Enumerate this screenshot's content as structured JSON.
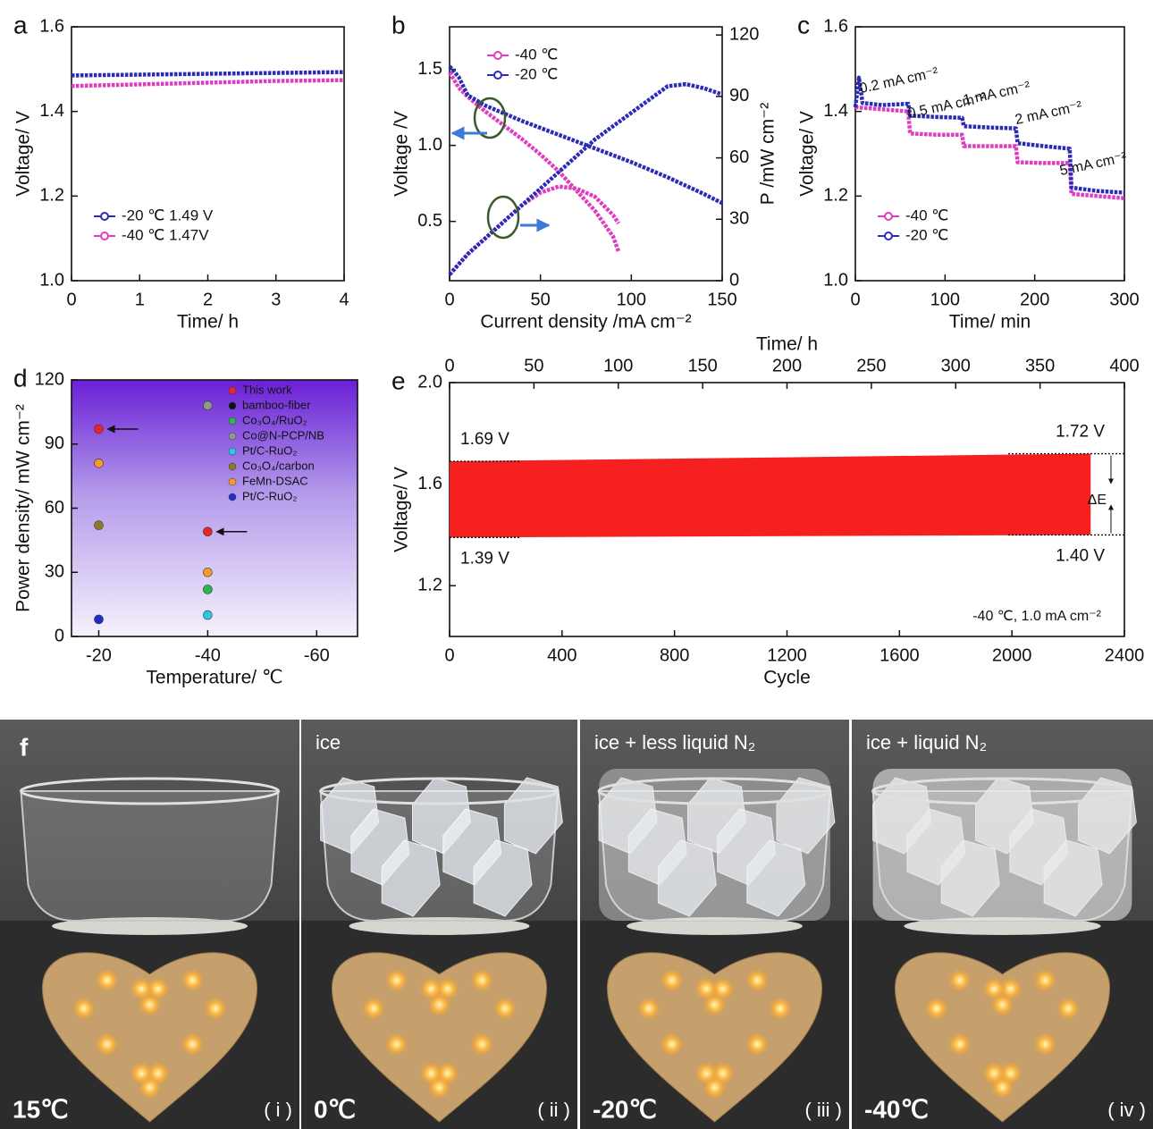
{
  "chart_data": [
    {
      "type": "line",
      "label": "a",
      "xlabel": "Time/ h",
      "ylabel": "Voltage/ V",
      "xlim": [
        0,
        4
      ],
      "ylim": [
        1.0,
        1.6
      ],
      "xticks": [
        0,
        1,
        2,
        3,
        4
      ],
      "yticks": [
        {
          "value": 1.0,
          "label": "1.0"
        },
        1.2,
        1.4,
        1.6
      ],
      "legend": "lower left",
      "series": [
        {
          "name": "-20 ℃ 1.49 V",
          "color": "#2b2bb5",
          "x": [
            0,
            0.5,
            1,
            1.5,
            2,
            2.5,
            3,
            3.5,
            4
          ],
          "values": [
            1.485,
            1.486,
            1.487,
            1.488,
            1.489,
            1.49,
            1.491,
            1.492,
            1.493
          ]
        },
        {
          "name": "-40 ℃ 1.47V",
          "color": "#e03cc0",
          "x": [
            0,
            0.5,
            1,
            1.5,
            2,
            2.5,
            3,
            3.5,
            4
          ],
          "values": [
            1.46,
            1.462,
            1.464,
            1.466,
            1.468,
            1.47,
            1.472,
            1.473,
            1.474
          ]
        }
      ]
    },
    {
      "type": "line",
      "label": "b",
      "xlabel": "Current density /mA cm⁻²",
      "ylabel": "Voltage /V",
      "y2label": "P /mW cm⁻²",
      "xlim": [
        0,
        150
      ],
      "ylim": [
        0.11,
        1.78
      ],
      "y2lim": [
        0,
        124
      ],
      "xticks": [
        0,
        50,
        100,
        150
      ],
      "yticks": [
        0.5,
        {
          "value": 1.0,
          "label": "1.0"
        },
        1.5
      ],
      "y2ticks": [
        0,
        30,
        60,
        90,
        120
      ],
      "legend": "upper left",
      "series": [
        {
          "name": "-40 ℃",
          "color": "#e03cc0",
          "x": [
            0,
            5,
            10,
            20,
            30,
            40,
            50,
            60,
            70,
            80,
            90,
            93
          ],
          "values": [
            1.48,
            1.38,
            1.32,
            1.22,
            1.13,
            1.04,
            0.94,
            0.83,
            0.7,
            0.57,
            0.4,
            0.3
          ]
        },
        {
          "name": "-20 ℃",
          "color": "#2b2bb5",
          "x": [
            0,
            5,
            10,
            20,
            40,
            60,
            80,
            100,
            120,
            140,
            150
          ],
          "values": [
            1.52,
            1.45,
            1.33,
            1.26,
            1.16,
            1.07,
            0.98,
            0.89,
            0.79,
            0.68,
            0.62
          ]
        },
        {
          "color": "#e03cc0",
          "axis": "y2",
          "x": [
            0,
            10,
            20,
            30,
            40,
            50,
            60,
            70,
            80,
            90,
            93
          ],
          "values": [
            3,
            13,
            21,
            29,
            37,
            43,
            46,
            45,
            41,
            32,
            28
          ]
        },
        {
          "color": "#2b2bb5",
          "axis": "y2",
          "x": [
            0,
            10,
            20,
            30,
            40,
            60,
            80,
            100,
            120,
            130,
            140,
            150
          ],
          "values": [
            3,
            13,
            21,
            29,
            37,
            53,
            69,
            82,
            95,
            96,
            94,
            91
          ]
        }
      ]
    },
    {
      "type": "line",
      "label": "c",
      "xlabel": "Time/ min",
      "ylabel": "Voltage/ V",
      "xlim": [
        0,
        300
      ],
      "ylim": [
        1.0,
        1.6
      ],
      "xticks": [
        0,
        100,
        200,
        300
      ],
      "yticks": [
        {
          "value": 1.0,
          "label": "1.0"
        },
        1.2,
        1.4,
        1.6
      ],
      "legend": "lower left",
      "annotations": [
        "0.2 mA cm⁻²",
        "0.5 mA cm⁻²",
        "1 mA cm⁻²",
        "2 mA cm⁻²",
        "5 mA cm⁻²"
      ],
      "series": [
        {
          "name": "-40 ℃",
          "color": "#e03cc0",
          "x": [
            0,
            30,
            59,
            61,
            90,
            119,
            121,
            150,
            179,
            181,
            210,
            239,
            241,
            270,
            300
          ],
          "values": [
            1.41,
            1.405,
            1.4,
            1.348,
            1.345,
            1.345,
            1.318,
            1.318,
            1.318,
            1.28,
            1.278,
            1.278,
            1.205,
            1.2,
            1.195
          ]
        },
        {
          "name": "-20 ℃",
          "color": "#2b2bb5",
          "x": [
            0,
            4,
            8,
            30,
            59,
            61,
            90,
            119,
            121,
            150,
            179,
            181,
            210,
            239,
            241,
            270,
            300
          ],
          "values": [
            1.41,
            1.48,
            1.42,
            1.415,
            1.418,
            1.39,
            1.387,
            1.385,
            1.365,
            1.362,
            1.36,
            1.325,
            1.318,
            1.312,
            1.22,
            1.212,
            1.208
          ]
        }
      ]
    },
    {
      "type": "scatter",
      "label": "d",
      "xlabel": "Temperature/ ℃",
      "ylabel": "Power density/ mW cm⁻²",
      "xlim": [
        -15,
        -67.5
      ],
      "ylim": [
        0,
        120
      ],
      "xticks": [
        -20,
        -40,
        -60
      ],
      "yticks": [
        0,
        30,
        60,
        90,
        120
      ],
      "legend": "upper right",
      "series": [
        {
          "name": "This work",
          "color": "#e8262a",
          "x": [
            -20,
            -40
          ],
          "values": [
            97,
            49
          ]
        },
        {
          "name": "bamboo-fiber",
          "color": "#111111",
          "x": [],
          "values": []
        },
        {
          "name": "Co₃O₄/RuO₂",
          "color": "#2bb84a",
          "x": [
            -40
          ],
          "values": [
            22
          ]
        },
        {
          "name": "Co@N-PCP/NB",
          "color": "#8d9a86",
          "x": [
            -40
          ],
          "values": [
            108
          ]
        },
        {
          "name": "Pt/C-RuO₂",
          "color": "#2ec7e8",
          "x": [
            -40
          ],
          "values": [
            10
          ]
        },
        {
          "name": "Co₃O₄/carbon",
          "color": "#8b7a2a",
          "x": [
            -20
          ],
          "values": [
            52
          ]
        },
        {
          "name": "FeMn-DSAC",
          "color": "#f39a2c",
          "x": [
            -20,
            -40
          ],
          "values": [
            81,
            30
          ]
        },
        {
          "name": "Pt/C-RuO₂",
          "color": "#1d2fc8",
          "x": [
            -20
          ],
          "values": [
            8
          ]
        }
      ]
    },
    {
      "type": "band",
      "label": "e",
      "xlabel": "Cycle",
      "x2label": "Time/ h",
      "ylabel": "Voltage/ V",
      "xlim": [
        0,
        2400
      ],
      "xticks": [
        0,
        400,
        800,
        1200,
        1600,
        2000,
        2400
      ],
      "x2lim": [
        0,
        400
      ],
      "x2ticks": [
        0,
        50,
        100,
        150,
        200,
        250,
        300,
        350,
        400
      ],
      "ylim": [
        1,
        2
      ],
      "yticks": [
        1.2,
        1.6,
        {
          "value": 2,
          "label": "2.0"
        }
      ],
      "annotations": [
        "-40 ℃, 1.0 mA cm⁻²",
        "ΔE"
      ],
      "series": [
        {
          "color": "#f5201f",
          "x": [
            0,
            2280
          ],
          "values": [
            1.69,
            1.72
          ],
          "value_labels": [
            "1.69 V",
            "1.72 V"
          ]
        },
        {
          "color": "#f5201f",
          "x": [
            0,
            2280
          ],
          "values": [
            1.39,
            1.4
          ],
          "value_labels": [
            "1.39 V",
            "1.40 V"
          ]
        }
      ]
    }
  ],
  "photo_panel": {
    "label": "f",
    "photos": [
      {
        "temperature": "15℃",
        "numeral": "( i )"
      },
      {
        "caption": "ice",
        "temperature": "0℃",
        "numeral": "( ii )"
      },
      {
        "caption": "ice + less liquid N₂",
        "temperature": "-20℃",
        "numeral": "( iii )"
      },
      {
        "caption": "ice + liquid N₂",
        "temperature": "-40℃",
        "numeral": "( iv )"
      }
    ]
  }
}
